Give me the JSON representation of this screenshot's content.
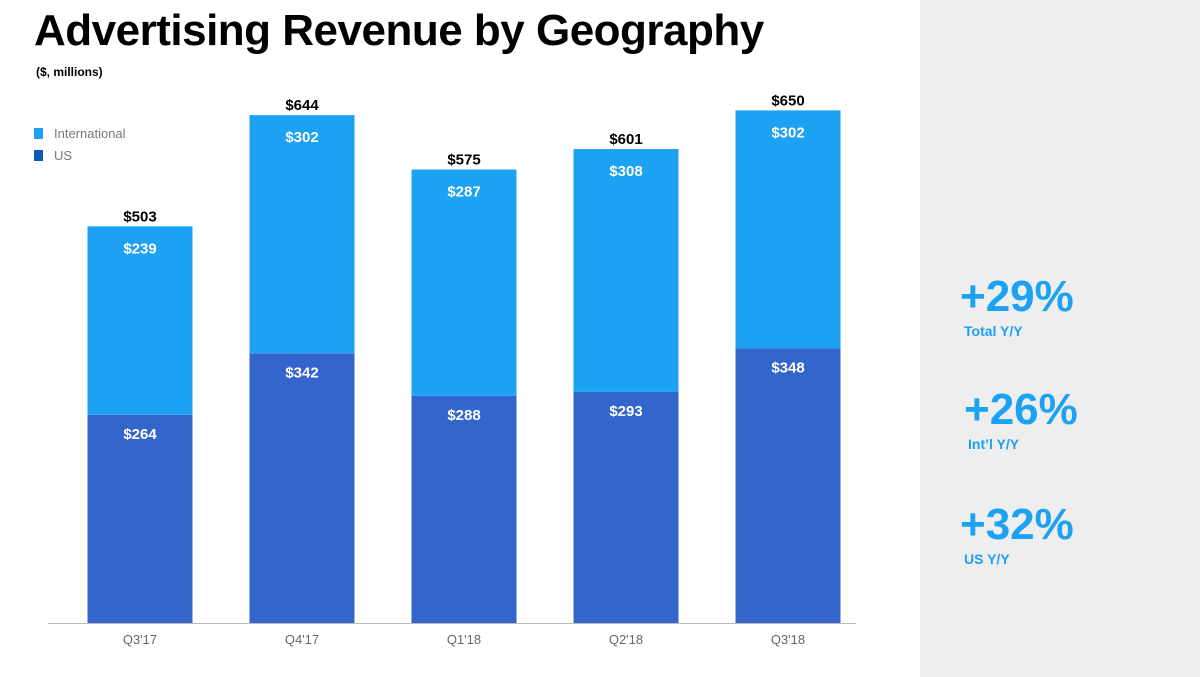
{
  "colors": {
    "international": "#1da1f2",
    "us": "#3465cc",
    "axis": "#bbbbbb",
    "tick_text": "#666666",
    "metric": "#1da1f2"
  },
  "header": {
    "title": "Advertising Revenue by Geography",
    "subtitle": "($, millions)"
  },
  "legend": [
    {
      "label": "International",
      "color": "#1da1f2"
    },
    {
      "label": "US",
      "color": "#0b5ab8"
    }
  ],
  "chart_data": {
    "type": "bar",
    "stacked": true,
    "categories": [
      "Q3'17",
      "Q4'17",
      "Q1'18",
      "Q2'18",
      "Q3'18"
    ],
    "series": [
      {
        "name": "US",
        "values": [
          264,
          342,
          288,
          293,
          348
        ],
        "labels": [
          "$264",
          "$342",
          "$288",
          "$293",
          "$348"
        ]
      },
      {
        "name": "International",
        "values": [
          239,
          302,
          287,
          308,
          302
        ],
        "labels": [
          "$239",
          "$302",
          "$287",
          "$308",
          "$302"
        ]
      }
    ],
    "totals": [
      503,
      644,
      575,
      601,
      650
    ],
    "total_labels": [
      "$503",
      "$644",
      "$575",
      "$601",
      "$650"
    ],
    "title": "Advertising Revenue by Geography",
    "xlabel": "",
    "ylabel": "",
    "ylim": [
      0,
      790
    ],
    "grid": false,
    "legend_position": "top-left"
  },
  "metrics": [
    {
      "value": "+29%",
      "label": "Total Y/Y"
    },
    {
      "value": "+26%",
      "label": "Int’l Y/Y"
    },
    {
      "value": "+32%",
      "label": "US Y/Y"
    }
  ]
}
